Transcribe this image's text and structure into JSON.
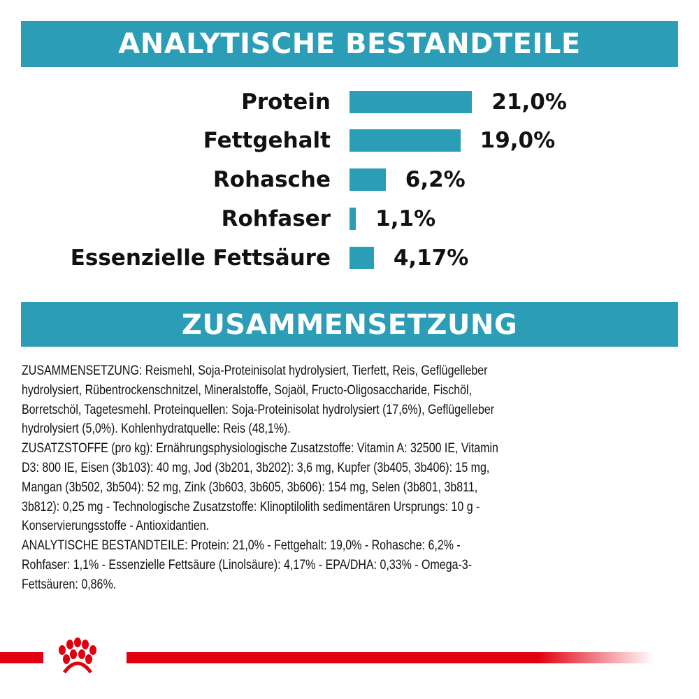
{
  "sections": {
    "analysis_title": "ANALYTISCHE BESTANDTEILE",
    "composition_title": "ZUSAMMENSETZUNG"
  },
  "chart_data": {
    "type": "bar",
    "orientation": "horizontal",
    "title": "ANALYTISCHE BESTANDTEILE",
    "categories": [
      "Protein",
      "Fettgehalt",
      "Rohasche",
      "Rohfaser",
      "Essenzielle Fettsäure"
    ],
    "values": [
      21.0,
      19.0,
      6.2,
      1.1,
      4.17
    ],
    "value_labels": [
      "21,0%",
      "19,0%",
      "6,2%",
      "1,1%",
      "4,17%"
    ],
    "unit": "%",
    "bar_color": "#2b9db6",
    "grid": false
  },
  "composition_lines": [
    "ZUSAMMENSETZUNG: Reismehl, Soja-Proteinisolat hydrolysiert, Tierfett, Reis, Geflügelleber",
    "hydrolysiert, Rübentrockenschnitzel, Mineralstoffe, Sojaöl, Fructo-Oligosaccharide, Fischöl,",
    "Borretschöl, Tagetesmehl. Proteinquellen: Soja-Proteinisolat hydrolysiert (17,6%), Geflügelleber",
    "hydrolysiert (5,0%). Kohlenhydratquelle: Reis (48,1%).",
    "ZUSATZSTOFFE (pro kg): Ernährungsphysiologische Zusatzstoffe: Vitamin A: 32500 IE, Vitamin",
    "D3: 800 IE, Eisen (3b103): 40 mg, Jod (3b201, 3b202): 3,6 mg, Kupfer (3b405, 3b406): 15 mg,",
    "Mangan (3b502, 3b504): 52 mg, Zink (3b603, 3b605, 3b606): 154 mg, Selen (3b801, 3b811,",
    "3b812): 0,25 mg - Technologische Zusatzstoffe: Klinoptilolith sedimentären Ursprungs: 10 g -",
    "Konservierungsstoffe - Antioxidantien.",
    "ANALYTISCHE BESTANDTEILE: Protein: 21,0% - Fettgehalt: 19,0% - Rohasche: 6,2% -",
    "Rohfaser: 1,1% - Essenzielle Fettsäure (Linolsäure): 4,17% - EPA/DHA: 0,33% - Omega-3-",
    "Fettsäuren: 0,86%."
  ],
  "brand": {
    "logo": "crown-paw-logo",
    "accent_color": "#e0000f",
    "teal": "#2b9db6"
  }
}
